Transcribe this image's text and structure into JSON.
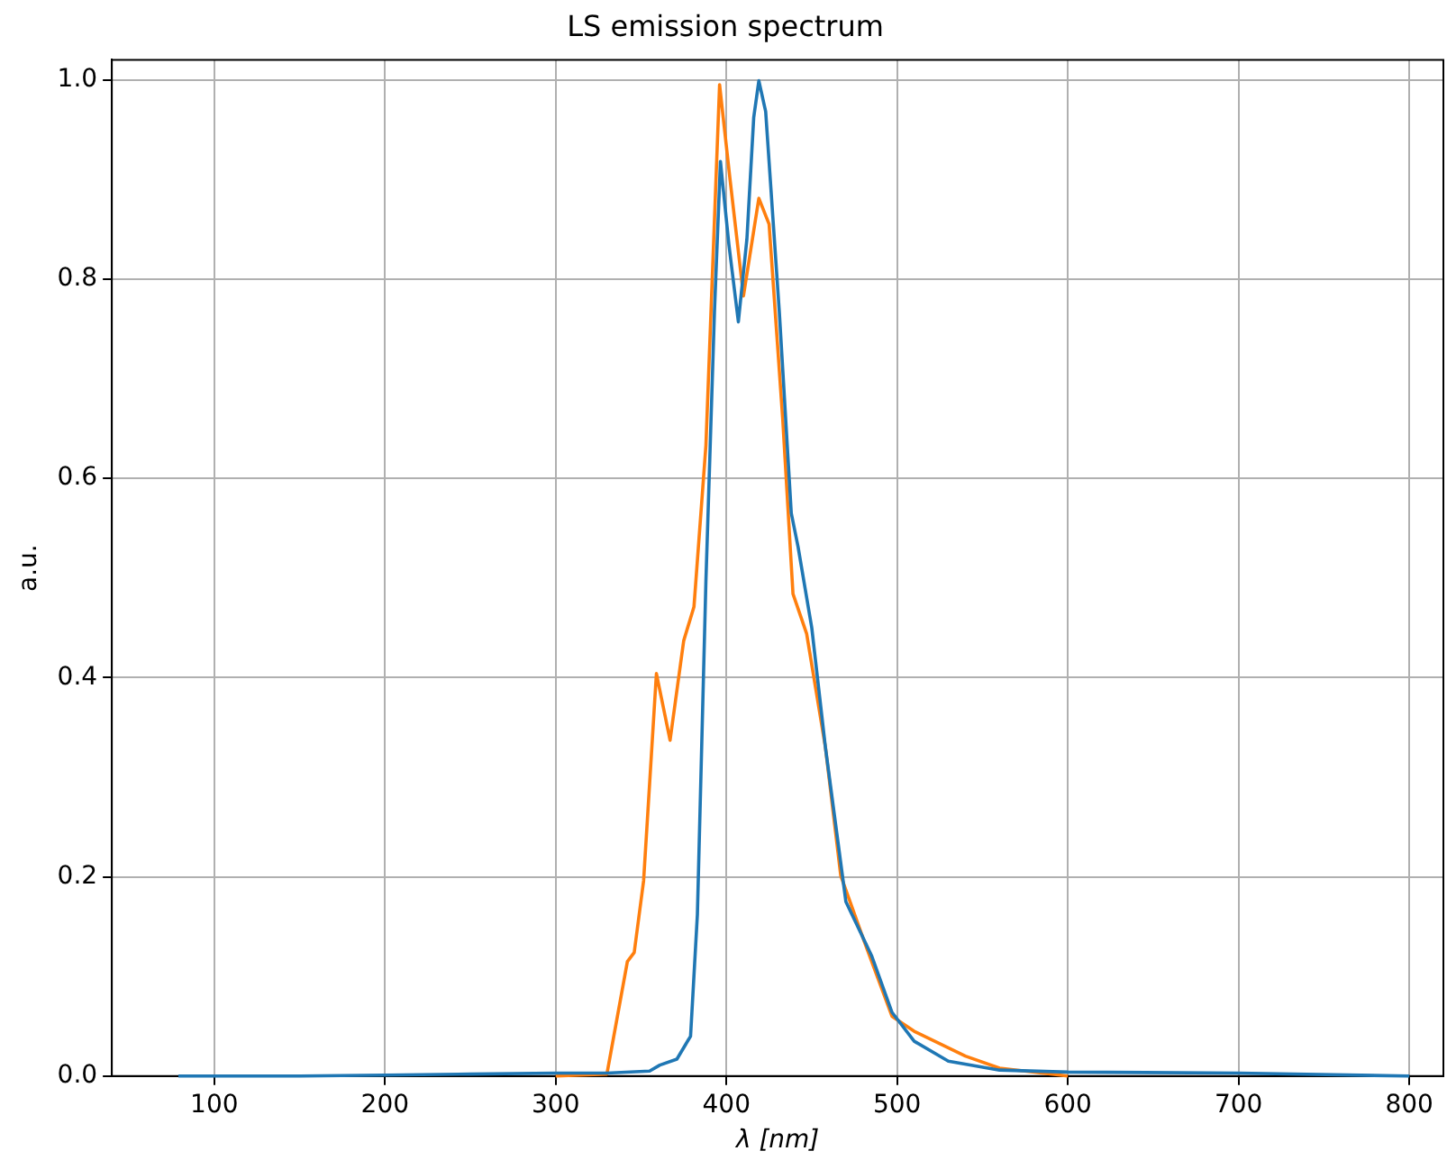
{
  "chart_data": {
    "type": "line",
    "title": "LS emission spectrum",
    "xlabel": "λ [nm]",
    "ylabel": "a.u.",
    "xlim": [
      40,
      820
    ],
    "xticks": [
      100,
      200,
      300,
      400,
      500,
      600,
      700,
      800
    ],
    "ylim": [
      0,
      1.02
    ],
    "yticks": [
      {
        "value": 0,
        "label": "0.0"
      },
      {
        "value": 0.2,
        "label": "0.2"
      },
      {
        "value": 0.4,
        "label": "0.4"
      },
      {
        "value": 0.6,
        "label": "0.6"
      },
      {
        "value": 0.8,
        "label": "0.8"
      },
      {
        "value": 1,
        "label": "1.0"
      }
    ],
    "grid": true,
    "marker": "none",
    "line_style": "solid",
    "series": [
      {
        "color": "#1f77b4",
        "x": [
          79,
          150,
          200,
          250,
          300,
          330,
          355,
          361,
          371,
          379,
          383,
          388,
          393,
          396.5,
          401.5,
          407,
          412,
          416,
          419,
          423,
          431,
          438,
          442,
          450,
          458,
          470,
          485,
          497,
          510,
          530,
          560,
          600,
          700,
          800
        ],
        "values": [
          0,
          0,
          0.001,
          0.002,
          0.003,
          0.003,
          0.005,
          0.011,
          0.017,
          0.04,
          0.162,
          0.497,
          0.767,
          0.918,
          0.834,
          0.757,
          0.84,
          0.962,
          0.999,
          0.968,
          0.767,
          0.565,
          0.531,
          0.45,
          0.33,
          0.175,
          0.121,
          0.064,
          0.035,
          0.015,
          0.006,
          0.004,
          0.003,
          0
        ]
      },
      {
        "color": "#ff7f0e",
        "x": [
          300,
          330,
          342,
          346,
          351.5,
          359,
          367,
          375,
          381,
          388,
          396,
          402,
          410,
          419,
          425,
          433,
          439,
          447,
          458,
          467,
          481,
          497,
          510,
          540,
          560,
          600
        ],
        "values": [
          0,
          0.002,
          0.115,
          0.124,
          0.196,
          0.404,
          0.337,
          0.437,
          0.471,
          0.633,
          0.995,
          0.902,
          0.783,
          0.881,
          0.855,
          0.659,
          0.484,
          0.444,
          0.33,
          0.201,
          0.134,
          0.06,
          0.045,
          0.02,
          0.008,
          0
        ]
      }
    ]
  }
}
